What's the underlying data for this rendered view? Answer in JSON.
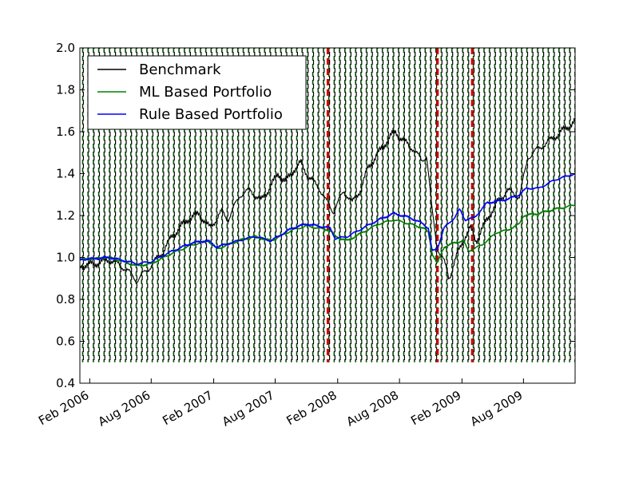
{
  "chart_data": {
    "type": "line",
    "title": "",
    "xlabel": "",
    "ylabel": "",
    "x_range": [
      "2006-01-03",
      "2009-12-31"
    ],
    "ylim": [
      0.4,
      2.0
    ],
    "y_ticks": [
      0.4,
      0.6,
      0.8,
      1.0,
      1.2,
      1.4,
      1.6,
      1.8,
      2.0
    ],
    "y_tick_labels": [
      "0.4",
      "0.6",
      "0.8",
      "1.0",
      "1.2",
      "1.4",
      "1.6",
      "1.8",
      "2.0"
    ],
    "x_ticks": [
      {
        "date": "2006-02-01",
        "label": "Feb 2006"
      },
      {
        "date": "2006-08-01",
        "label": "Aug 2006"
      },
      {
        "date": "2007-02-01",
        "label": "Feb 2007"
      },
      {
        "date": "2007-08-01",
        "label": "Aug 2007"
      },
      {
        "date": "2008-02-01",
        "label": "Feb 2008"
      },
      {
        "date": "2008-08-01",
        "label": "Aug 2008"
      },
      {
        "date": "2009-02-01",
        "label": "Feb 2009"
      },
      {
        "date": "2009-08-01",
        "label": "Aug 2009"
      }
    ],
    "grid": false,
    "legend_position": "top-left",
    "series": [
      {
        "name": "Benchmark",
        "color": "#000000",
        "points": [
          [
            "2006-01-03",
            0.96
          ],
          [
            "2006-02-15",
            0.97
          ],
          [
            "2006-04-01",
            0.99
          ],
          [
            "2006-05-15",
            0.95
          ],
          [
            "2006-06-20",
            0.89
          ],
          [
            "2006-07-20",
            0.94
          ],
          [
            "2006-09-01",
            1.02
          ],
          [
            "2006-10-01",
            1.1
          ],
          [
            "2006-11-15",
            1.18
          ],
          [
            "2006-12-20",
            1.21
          ],
          [
            "2007-01-20",
            1.14
          ],
          [
            "2007-02-25",
            1.22
          ],
          [
            "2007-03-15",
            1.18
          ],
          [
            "2007-04-20",
            1.3
          ],
          [
            "2007-05-20",
            1.32
          ],
          [
            "2007-06-20",
            1.27
          ],
          [
            "2007-07-15",
            1.33
          ],
          [
            "2007-08-10",
            1.4
          ],
          [
            "2007-09-01",
            1.36
          ],
          [
            "2007-09-25",
            1.42
          ],
          [
            "2007-10-15",
            1.45
          ],
          [
            "2007-11-10",
            1.38
          ],
          [
            "2007-12-10",
            1.33
          ],
          [
            "2007-12-28",
            1.27
          ],
          [
            "2008-01-20",
            1.22
          ],
          [
            "2008-02-20",
            1.32
          ],
          [
            "2008-03-15",
            1.26
          ],
          [
            "2008-04-10",
            1.33
          ],
          [
            "2008-05-01",
            1.43
          ],
          [
            "2008-06-01",
            1.5
          ],
          [
            "2008-07-01",
            1.57
          ],
          [
            "2008-07-20",
            1.6
          ],
          [
            "2008-08-10",
            1.56
          ],
          [
            "2008-09-10",
            1.52
          ],
          [
            "2008-10-05",
            1.46
          ],
          [
            "2008-10-20",
            1.49
          ],
          [
            "2008-11-05",
            1.22
          ],
          [
            "2008-11-20",
            1.05
          ],
          [
            "2008-12-10",
            0.98
          ],
          [
            "2008-12-25",
            0.9
          ],
          [
            "2009-01-10",
            0.98
          ],
          [
            "2009-01-25",
            1.04
          ],
          [
            "2009-02-10",
            1.1
          ],
          [
            "2009-02-25",
            1.14
          ],
          [
            "2009-03-15",
            1.08
          ],
          [
            "2009-04-15",
            1.18
          ],
          [
            "2009-05-15",
            1.26
          ],
          [
            "2009-06-15",
            1.32
          ],
          [
            "2009-07-20",
            1.29
          ],
          [
            "2009-08-15",
            1.48
          ],
          [
            "2009-09-15",
            1.52
          ],
          [
            "2009-10-20",
            1.56
          ],
          [
            "2009-11-20",
            1.6
          ],
          [
            "2009-12-31",
            1.65
          ]
        ]
      },
      {
        "name": "ML Based Portfolio",
        "color": "#008000",
        "points": [
          [
            "2006-01-03",
            0.99
          ],
          [
            "2006-04-01",
            1.0
          ],
          [
            "2006-06-20",
            0.96
          ],
          [
            "2006-08-01",
            0.97
          ],
          [
            "2006-10-01",
            1.02
          ],
          [
            "2006-12-01",
            1.06
          ],
          [
            "2007-01-15",
            1.08
          ],
          [
            "2007-02-10",
            1.04
          ],
          [
            "2007-04-15",
            1.08
          ],
          [
            "2007-06-01",
            1.1
          ],
          [
            "2007-07-20",
            1.08
          ],
          [
            "2007-09-20",
            1.13
          ],
          [
            "2007-11-01",
            1.15
          ],
          [
            "2008-01-10",
            1.13
          ],
          [
            "2008-01-25",
            1.1
          ],
          [
            "2008-03-01",
            1.08
          ],
          [
            "2008-04-15",
            1.12
          ],
          [
            "2008-06-01",
            1.16
          ],
          [
            "2008-07-15",
            1.18
          ],
          [
            "2008-09-01",
            1.16
          ],
          [
            "2008-10-10",
            1.14
          ],
          [
            "2008-10-25",
            1.12
          ],
          [
            "2008-11-05",
            1.02
          ],
          [
            "2008-11-20",
            0.97
          ],
          [
            "2008-12-10",
            1.05
          ],
          [
            "2009-01-10",
            1.07
          ],
          [
            "2009-02-05",
            1.08
          ],
          [
            "2009-02-20",
            1.03
          ],
          [
            "2009-04-01",
            1.06
          ],
          [
            "2009-05-15",
            1.12
          ],
          [
            "2009-06-15",
            1.13
          ],
          [
            "2009-07-20",
            1.16
          ],
          [
            "2009-08-01",
            1.2
          ],
          [
            "2009-09-15",
            1.21
          ],
          [
            "2009-11-01",
            1.23
          ],
          [
            "2009-12-31",
            1.25
          ]
        ]
      },
      {
        "name": "Rule Based Portfolio",
        "color": "#0000ff",
        "points": [
          [
            "2006-01-03",
            0.99
          ],
          [
            "2006-04-01",
            1.0
          ],
          [
            "2006-06-20",
            0.97
          ],
          [
            "2006-08-01",
            0.98
          ],
          [
            "2006-10-01",
            1.03
          ],
          [
            "2006-12-01",
            1.07
          ],
          [
            "2007-01-15",
            1.08
          ],
          [
            "2007-02-10",
            1.05
          ],
          [
            "2007-04-15",
            1.08
          ],
          [
            "2007-06-01",
            1.1
          ],
          [
            "2007-07-20",
            1.08
          ],
          [
            "2007-09-20",
            1.14
          ],
          [
            "2007-11-01",
            1.16
          ],
          [
            "2008-01-10",
            1.14
          ],
          [
            "2008-01-25",
            1.09
          ],
          [
            "2008-03-01",
            1.1
          ],
          [
            "2008-04-15",
            1.14
          ],
          [
            "2008-06-01",
            1.18
          ],
          [
            "2008-07-15",
            1.21
          ],
          [
            "2008-09-01",
            1.19
          ],
          [
            "2008-10-10",
            1.16
          ],
          [
            "2008-10-25",
            1.14
          ],
          [
            "2008-11-05",
            1.03
          ],
          [
            "2008-11-20",
            1.04
          ],
          [
            "2008-12-10",
            1.14
          ],
          [
            "2009-01-10",
            1.19
          ],
          [
            "2009-01-25",
            1.23
          ],
          [
            "2009-02-10",
            1.18
          ],
          [
            "2009-03-10",
            1.19
          ],
          [
            "2009-04-15",
            1.26
          ],
          [
            "2009-05-20",
            1.27
          ],
          [
            "2009-06-20",
            1.28
          ],
          [
            "2009-07-20",
            1.3
          ],
          [
            "2009-08-10",
            1.33
          ],
          [
            "2009-09-15",
            1.33
          ],
          [
            "2009-11-01",
            1.37
          ],
          [
            "2009-12-31",
            1.4
          ]
        ]
      }
    ],
    "event_markers": {
      "red_dashed_dates": [
        "2008-01-03",
        "2008-11-21",
        "2009-03-03"
      ],
      "red_color": "#cc0000",
      "green_dashed_color": "#004d00",
      "black_dashed_color": "#000000",
      "dashed_range": [
        0.5,
        2.0
      ]
    }
  }
}
